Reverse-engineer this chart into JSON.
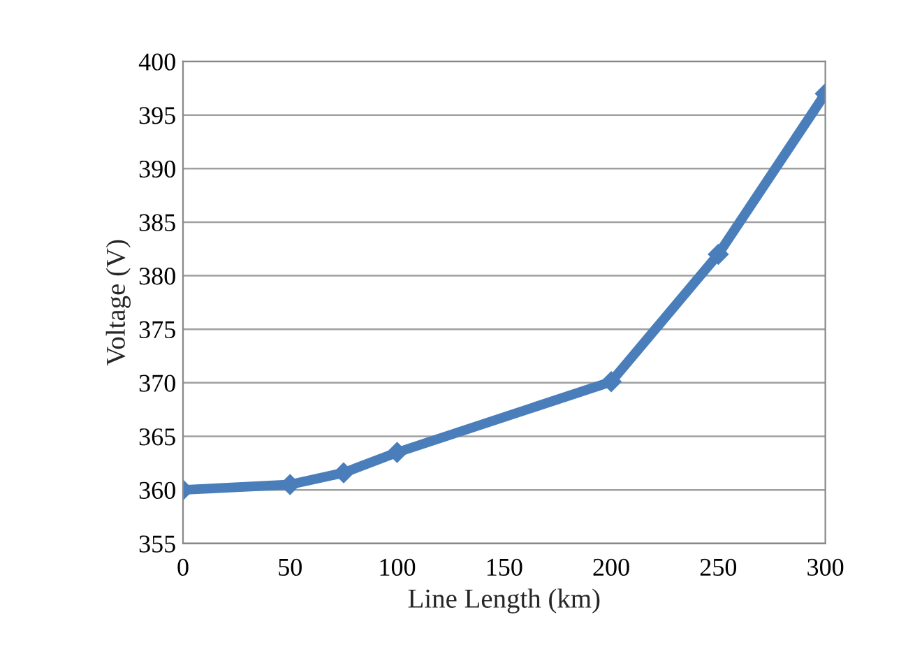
{
  "chart_data": {
    "type": "line",
    "xlabel": "Line Length (km)",
    "ylabel": "Voltage (V)",
    "x": [
      0,
      50,
      75,
      100,
      200,
      250,
      300
    ],
    "series": [
      {
        "color": "#4a7ebb",
        "values": [
          360,
          360.5,
          361.6,
          363.5,
          370.1,
          382,
          397
        ]
      }
    ],
    "xlim": [
      0,
      300
    ],
    "xticks": [
      0,
      50,
      100,
      150,
      200,
      250,
      300
    ],
    "ylim": [
      355,
      400
    ],
    "yticks": [
      355,
      360,
      365,
      370,
      375,
      380,
      385,
      390,
      395,
      400
    ],
    "grid": "y",
    "marker": "diamond",
    "line_style": "solid",
    "legend": false
  }
}
